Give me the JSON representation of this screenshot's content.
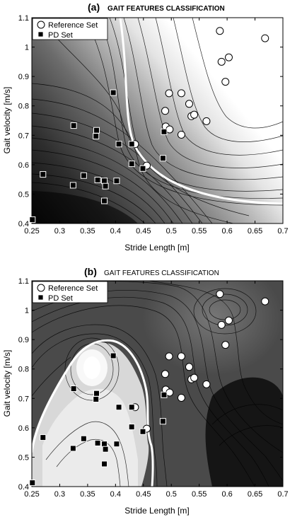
{
  "chart_data": [
    {
      "type": "scatter",
      "title_prefix": "(a)",
      "title": "GAIT FEATURES CLASSIFICATION",
      "xlabel": "Stride Length [m]",
      "ylabel": "Gait  velocity [m/s]",
      "xlim": [
        0.25,
        0.7
      ],
      "ylim": [
        0.4,
        1.1
      ],
      "x_ticks": [
        "0.25",
        "0.3",
        "0.35",
        "0.4",
        "0.45",
        "0.5",
        "0.55",
        "0.6",
        "0.65",
        "0.7"
      ],
      "y_ticks": [
        "0.4",
        "0.5",
        "0.6",
        "0.7",
        "0.8",
        "0.9",
        "1",
        "1.1"
      ],
      "legend_position": "top-left",
      "background": "contour",
      "series": [
        {
          "name": "Reference Set",
          "marker": "circle",
          "x": [
            0.587,
            0.668,
            0.603,
            0.59,
            0.597,
            0.496,
            0.518,
            0.489,
            0.532,
            0.536,
            0.541,
            0.49,
            0.497,
            0.518,
            0.563,
            0.435,
            0.456
          ],
          "y": [
            1.055,
            1.03,
            0.965,
            0.95,
            0.882,
            0.843,
            0.843,
            0.783,
            0.807,
            0.765,
            0.77,
            0.73,
            0.72,
            0.702,
            0.748,
            0.67,
            0.597
          ]
        },
        {
          "name": "PD Set",
          "marker": "square",
          "x": [
            0.396,
            0.325,
            0.366,
            0.365,
            0.406,
            0.429,
            0.429,
            0.487,
            0.485,
            0.27,
            0.343,
            0.368,
            0.38,
            0.402,
            0.324,
            0.382,
            0.38,
            0.449,
            0.251
          ],
          "y": [
            0.845,
            0.733,
            0.717,
            0.697,
            0.67,
            0.67,
            0.603,
            0.712,
            0.622,
            0.567,
            0.563,
            0.548,
            0.545,
            0.545,
            0.53,
            0.527,
            0.477,
            0.587,
            0.413
          ]
        }
      ]
    },
    {
      "type": "scatter",
      "title_prefix": "(b)",
      "title": "GAIT FEATURES CLASSIFICATION",
      "xlabel": "Stride Length [m]",
      "ylabel": "Gait  velocity [m/s]",
      "xlim": [
        0.25,
        0.7
      ],
      "ylim": [
        0.4,
        1.1
      ],
      "x_ticks": [
        "0.25",
        "0.3",
        "0.35",
        "0.4",
        "0.45",
        "0.5",
        "0.55",
        "0.6",
        "0.65",
        "0.7"
      ],
      "y_ticks": [
        "0.4",
        "0.5",
        "0.6",
        "0.7",
        "0.8",
        "0.9",
        "1",
        "1.1"
      ],
      "legend_position": "top-left",
      "background": "contour",
      "series": [
        {
          "name": "Reference Set",
          "marker": "circle",
          "x": [
            0.587,
            0.668,
            0.603,
            0.59,
            0.597,
            0.496,
            0.518,
            0.489,
            0.532,
            0.536,
            0.541,
            0.49,
            0.497,
            0.518,
            0.563,
            0.435,
            0.456
          ],
          "y": [
            1.055,
            1.03,
            0.965,
            0.95,
            0.882,
            0.843,
            0.843,
            0.783,
            0.807,
            0.765,
            0.77,
            0.73,
            0.72,
            0.702,
            0.748,
            0.67,
            0.597
          ]
        },
        {
          "name": "PD Set",
          "marker": "square",
          "x": [
            0.396,
            0.325,
            0.366,
            0.365,
            0.406,
            0.429,
            0.429,
            0.487,
            0.485,
            0.27,
            0.343,
            0.368,
            0.38,
            0.402,
            0.324,
            0.382,
            0.38,
            0.449,
            0.251
          ],
          "y": [
            0.845,
            0.733,
            0.717,
            0.697,
            0.67,
            0.67,
            0.603,
            0.712,
            0.622,
            0.567,
            0.563,
            0.548,
            0.545,
            0.545,
            0.53,
            0.527,
            0.477,
            0.587,
            0.413
          ]
        }
      ]
    }
  ]
}
